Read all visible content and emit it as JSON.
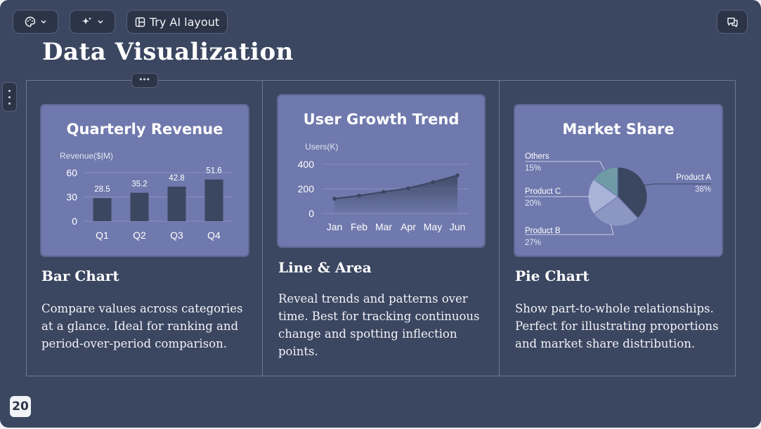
{
  "toolbar": {
    "theme_button": {
      "icon": "palette-icon",
      "dropdown_icon": "chevron-down-icon"
    },
    "ai_button": {
      "icon": "sparkles-icon",
      "dropdown_icon": "chevron-down-icon"
    },
    "ai_layout_label": "Try AI layout",
    "comments_icon": "comments-icon"
  },
  "slide": {
    "title": "Data Visualization",
    "page_number": "20"
  },
  "columns": [
    {
      "section_title": "Bar Chart",
      "description": "Compare values across categories at a glance. Ideal for ranking and period-over-period comparison."
    },
    {
      "section_title": "Line & Area",
      "description": "Reveal trends and patterns over time. Best for tracking continuous change and spotting inflection points."
    },
    {
      "section_title": "Pie Chart",
      "description": "Show part-to-whole relationships. Perfect for illustrating proportions and market share distribution."
    }
  ],
  "colors": {
    "slide_bg": "#3b4660",
    "card_bg": "#6f79ad",
    "bar": "#3b4660",
    "pie_a": "#3b4660",
    "pie_b": "#8b96c2",
    "pie_c": "#a9b3d8",
    "pie_others": "#6f9aa6"
  },
  "chart_data": [
    {
      "type": "bar",
      "title": "Quarterly Revenue",
      "ylabel": "Revenue($|M)",
      "categories": [
        "Q1",
        "Q2",
        "Q3",
        "Q4"
      ],
      "values": [
        28.5,
        35.2,
        42.8,
        51.6
      ],
      "value_labels": [
        "28.5",
        "35.2",
        "42.8",
        "51.6"
      ],
      "yticks": [
        "0",
        "30",
        "60"
      ],
      "ylim": [
        0,
        60
      ]
    },
    {
      "type": "area",
      "title": "User Growth Trend",
      "ylabel": "Users(K)",
      "categories": [
        "Jan",
        "Feb",
        "Mar",
        "Apr",
        "May",
        "Jun"
      ],
      "values": [
        120,
        145,
        175,
        205,
        255,
        310
      ],
      "yticks": [
        "0",
        "200",
        "400"
      ],
      "ylim": [
        0,
        400
      ]
    },
    {
      "type": "pie",
      "title": "Market Share",
      "slices": [
        {
          "label": "Product A",
          "percent_label": "38%",
          "value": 38
        },
        {
          "label": "Product B",
          "percent_label": "27%",
          "value": 27
        },
        {
          "label": "Product C",
          "percent_label": "20%",
          "value": 20
        },
        {
          "label": "Others",
          "percent_label": "15%",
          "value": 15
        }
      ]
    }
  ]
}
